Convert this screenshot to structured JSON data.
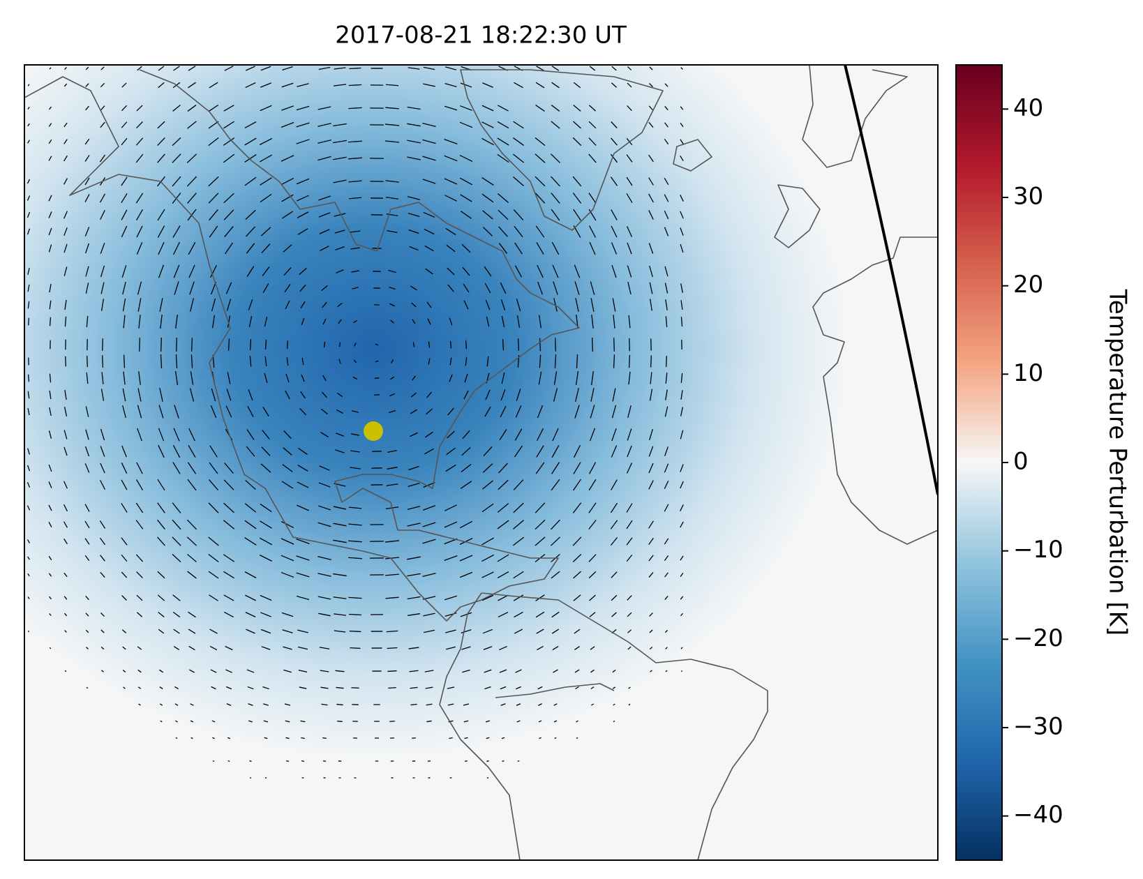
{
  "title": "2017-08-21 18:22:30 UT",
  "colorbar": {
    "label": "Temperature Perturbation [K]",
    "lim": [
      -45,
      45
    ],
    "ticks": [
      {
        "value": -40,
        "label": "−40"
      },
      {
        "value": -30,
        "label": "−30"
      },
      {
        "value": -20,
        "label": "−20"
      },
      {
        "value": -10,
        "label": "−10"
      },
      0,
      10,
      20,
      30,
      40
    ]
  }
}
